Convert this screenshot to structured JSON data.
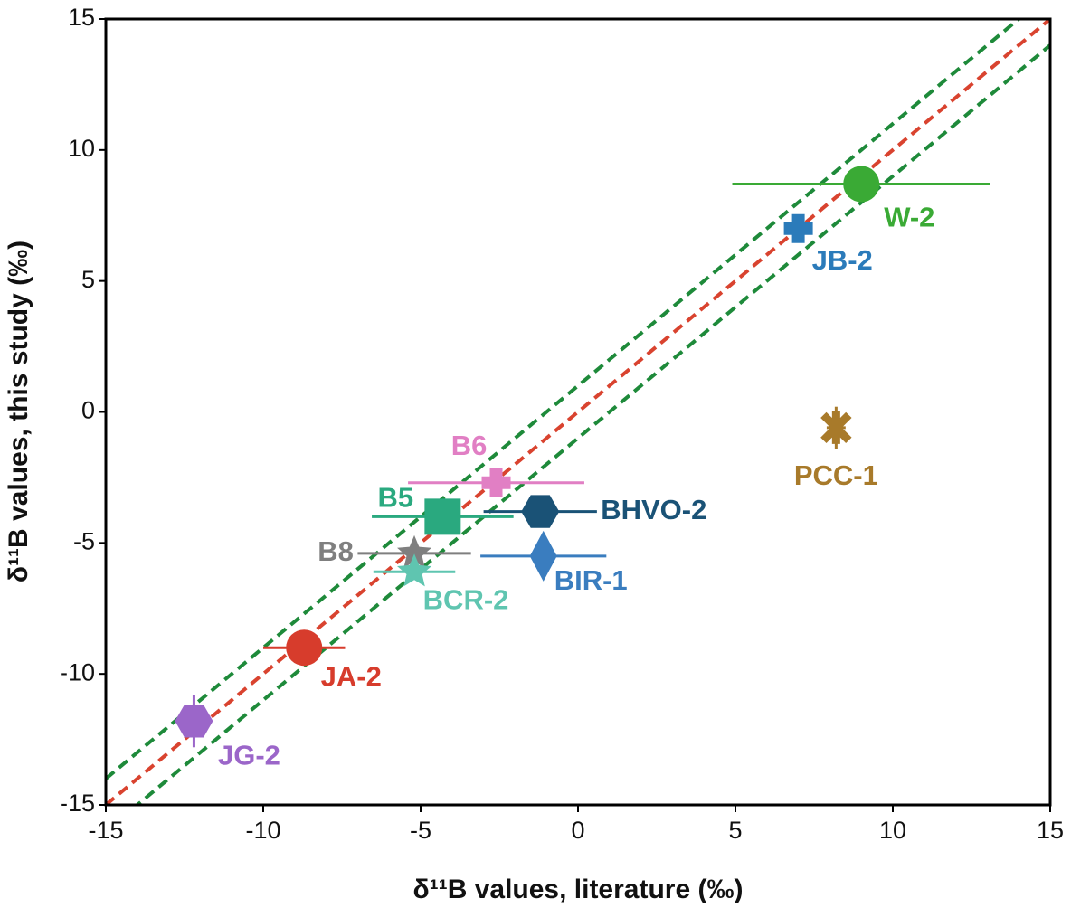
{
  "chart_data": {
    "type": "scatter",
    "x_label": "δ¹¹B values, literature (‰)",
    "y_label": "δ¹¹B values, this study (‰)",
    "xlim": [
      -15,
      15
    ],
    "ylim": [
      -15,
      15
    ],
    "xticks": [
      -15,
      -10,
      -5,
      0,
      5,
      10,
      15
    ],
    "yticks": [
      -15,
      -10,
      -5,
      0,
      5,
      10,
      15
    ],
    "reference_lines": [
      {
        "slope": 1,
        "intercept": 0,
        "color": "#d9432f"
      },
      {
        "slope": 1,
        "intercept": 1,
        "color": "#1e8a3a"
      },
      {
        "slope": 1,
        "intercept": -1,
        "color": "#1e8a3a"
      }
    ],
    "series": [
      {
        "name": "W-2",
        "color": "#3aaa35",
        "marker": "circle",
        "x": 9.0,
        "y": 8.7,
        "xerr": 4.1,
        "yerr": 0.3
      },
      {
        "name": "JB-2",
        "color": "#2b7bba",
        "marker": "plus",
        "x": 7.0,
        "y": 7.0,
        "xerr": 0.3,
        "yerr": 0.4
      },
      {
        "name": "PCC-1",
        "color": "#a87a2a",
        "marker": "x",
        "x": 8.2,
        "y": -0.6,
        "xerr": 0.3,
        "yerr": 0.8
      },
      {
        "name": "B6",
        "color": "#e17fc4",
        "marker": "plus",
        "x": -2.6,
        "y": -2.7,
        "xerr": 2.8,
        "yerr": 0.3
      },
      {
        "name": "B5",
        "color": "#2aa97f",
        "marker": "square",
        "x": -4.3,
        "y": -4.0,
        "xerr": 2.25,
        "yerr": 0.3
      },
      {
        "name": "BHVO-2",
        "color": "#1a5276",
        "marker": "hexagon",
        "x": -1.2,
        "y": -3.8,
        "xerr": 1.8,
        "yerr": 0.3
      },
      {
        "name": "BIR-1",
        "color": "#3a7dbf",
        "marker": "diamond",
        "x": -1.1,
        "y": -5.5,
        "xerr": 2.0,
        "yerr": 0.3
      },
      {
        "name": "B8",
        "color": "#7f7f7f",
        "marker": "star",
        "x": -5.2,
        "y": -5.4,
        "xerr": 1.8,
        "yerr": 0.3
      },
      {
        "name": "BCR-2",
        "color": "#5fc5b0",
        "marker": "star",
        "x": -5.2,
        "y": -6.1,
        "xerr": 1.3,
        "yerr": 0.3
      },
      {
        "name": "JA-2",
        "color": "#d73c2c",
        "marker": "circle",
        "x": -8.7,
        "y": -9.0,
        "xerr": 1.3,
        "yerr": 0.3
      },
      {
        "name": "JG-2",
        "color": "#9b66c9",
        "marker": "hexagon",
        "x": -12.2,
        "y": -11.8,
        "xerr": 0.3,
        "yerr": 1.0
      }
    ]
  }
}
